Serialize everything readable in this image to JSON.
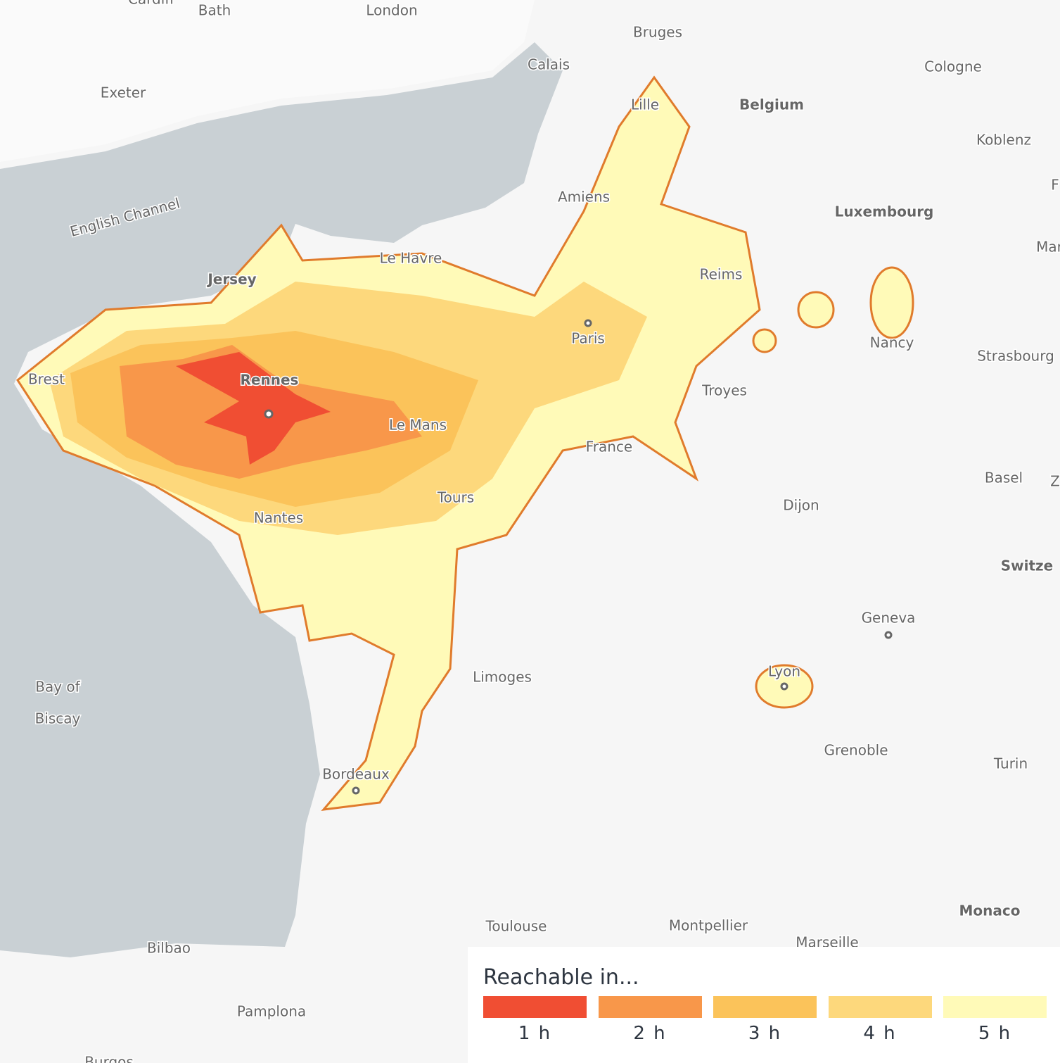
{
  "map": {
    "labels": [
      "Cardiff",
      "Bath",
      "London",
      "Bruges",
      "Calais",
      "Cologne",
      "Exeter",
      "Lille",
      "Belgium",
      "Koblenz",
      "English Channel",
      "Amiens",
      "Luxembourg",
      "F",
      "Le Havre",
      "Mar",
      "Jersey",
      "Reims",
      "Paris",
      "Brest",
      "Rennes",
      "Nancy",
      "Strasbourg",
      "Troyes",
      "Le Mans",
      "France",
      "Basel",
      "Z",
      "Dijon",
      "Tours",
      "Nantes",
      "Switze",
      "Geneva",
      "Bay of",
      "Biscay",
      "Limoges",
      "Lyon",
      "Grenoble",
      "Turin",
      "Bordeaux",
      "Toulouse",
      "Montpellier",
      "Monaco",
      "Marseille",
      "Bilbao",
      "Pamplona",
      "Burgos"
    ]
  },
  "legend": {
    "title": "Reachable in...",
    "items": [
      {
        "label": "1 h",
        "color": "#f04e33"
      },
      {
        "label": "2 h",
        "color": "#f8974a"
      },
      {
        "label": "3 h",
        "color": "#fbc35a"
      },
      {
        "label": "4 h",
        "color": "#fdd87c"
      },
      {
        "label": "5 h",
        "color": "#fffab8"
      }
    ]
  }
}
